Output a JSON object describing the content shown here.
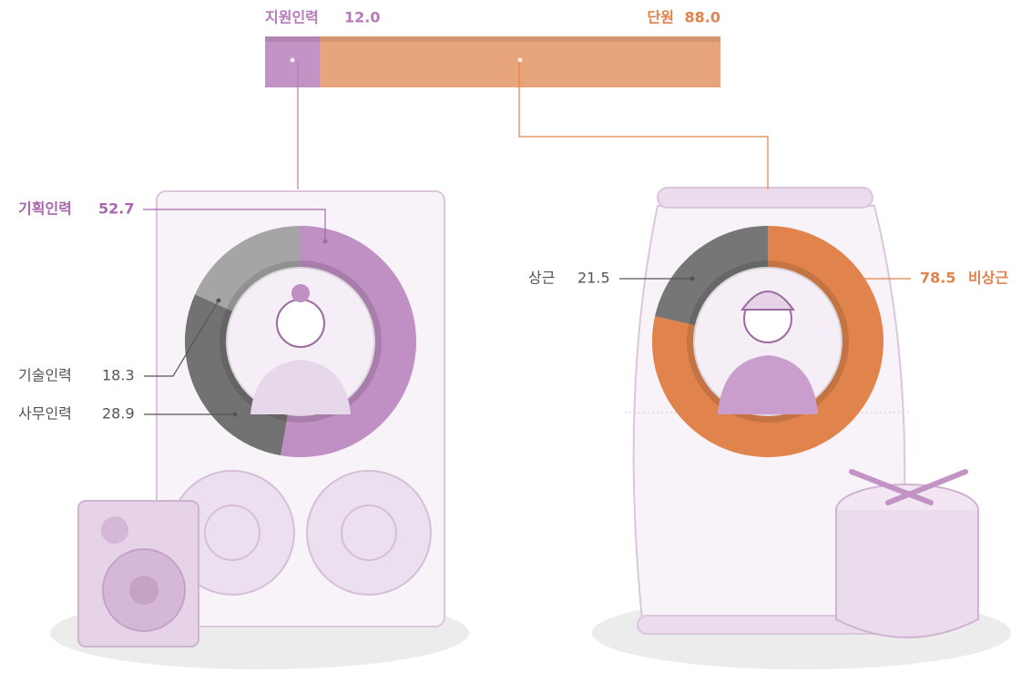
{
  "chart_data": [
    {
      "type": "stacked-bar",
      "series": [
        {
          "name": "지원인력",
          "color": "#c493c6",
          "values": [
            12.0
          ],
          "value_labels": [
            "12.0"
          ]
        },
        {
          "name": "단원",
          "color": "#e8a57c",
          "values": [
            88.0
          ],
          "value_labels": [
            "88.0"
          ]
        }
      ]
    },
    {
      "type": "donut",
      "categories": [
        "기획인력",
        "사무인력",
        "기술인력"
      ],
      "values": [
        52.7,
        28.9,
        18.3
      ],
      "colors": [
        "#c08fc4",
        "#727272",
        "#a5a5a5"
      ]
    },
    {
      "type": "donut",
      "categories": [
        "비상근",
        "상근"
      ],
      "values": [
        78.5,
        21.5
      ],
      "colors": [
        "#e0834c",
        "#767676"
      ]
    }
  ]
}
